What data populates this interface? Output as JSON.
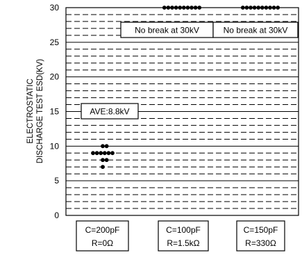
{
  "chart_data": {
    "type": "scatter",
    "title": "",
    "xlabel": "",
    "ylabel_lines": [
      "ELECTROSTATIC",
      "DISCHARGE TEST ESD(KV)"
    ],
    "ylim": [
      0,
      30
    ],
    "yticks": [
      0,
      5,
      10,
      15,
      20,
      25,
      30
    ],
    "grid": "dashed minor lines every 1 kV, solid major lines every 5 kV",
    "categories": [
      {
        "line1": "C=200pF",
        "line2": "R=0Ω"
      },
      {
        "line1": "C=100pF",
        "line2": "R=1.5kΩ"
      },
      {
        "line1": "C=150pF",
        "line2": "R=330Ω"
      }
    ],
    "series": [
      {
        "category": 0,
        "points": [
          {
            "level": 10,
            "count": 2
          },
          {
            "level": 9,
            "count": 6
          },
          {
            "level": 8,
            "count": 2
          },
          {
            "level": 7,
            "count": 1
          }
        ]
      },
      {
        "category": 1,
        "points": [
          {
            "level": 30,
            "count": 10
          }
        ]
      },
      {
        "category": 2,
        "points": [
          {
            "level": 30,
            "count": 10
          }
        ]
      }
    ],
    "annotations": [
      {
        "text": "AVE:8.8kV",
        "category": 0,
        "y": 14
      },
      {
        "text": "No break at 30kV",
        "category": 1,
        "y": 27
      },
      {
        "text": "No break at 30kV",
        "category": 2,
        "y": 27
      }
    ]
  }
}
